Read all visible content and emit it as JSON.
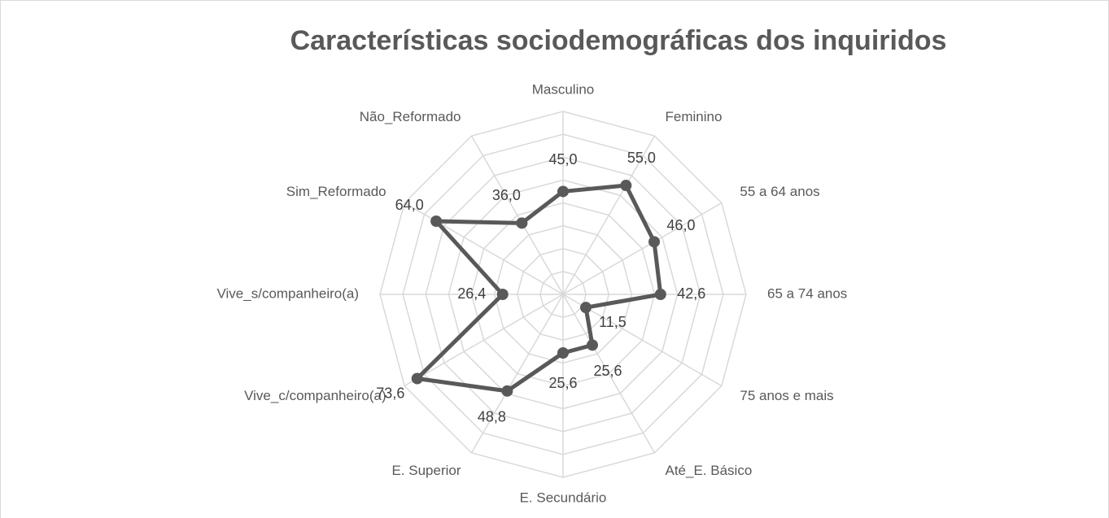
{
  "chart_data": {
    "type": "radar",
    "title": "Características sociodemográficas dos inquiridos",
    "categories": [
      "Masculino",
      "Feminino",
      "55 a 64 anos",
      "65 a 74 anos",
      "75 anos e mais",
      "Até_E. Básico",
      "E. Secundário",
      "E. Superior",
      "Vive_c/companheiro(a)",
      "Vive_s/companheiro(a)",
      "Sim_Reformado",
      "Não_Reformado"
    ],
    "values": [
      45.0,
      55.0,
      46.0,
      42.6,
      11.5,
      25.6,
      25.6,
      48.8,
      73.6,
      26.4,
      64.0,
      36.0
    ],
    "value_labels": [
      "45,0",
      "55,0",
      "46,0",
      "42,6",
      "11,5",
      "25,6",
      "25,6",
      "48,8",
      "73,6",
      "26,4",
      "64,0",
      "36,0"
    ],
    "color": "#595959",
    "ylim": [
      0,
      80
    ],
    "yticks": [
      0,
      10,
      20,
      30,
      40,
      50,
      60,
      70,
      80
    ],
    "grid": true
  }
}
